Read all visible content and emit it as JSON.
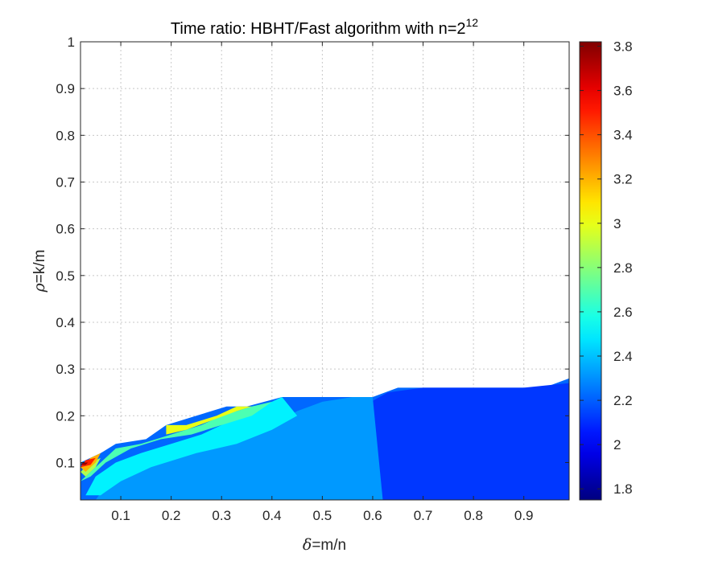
{
  "chart_data": {
    "type": "contour",
    "title": "Time ratio: HBHT/Fast algorithm with n=2",
    "title_exponent": "12",
    "xlabel": {
      "symbol": "δ",
      "text": "=m/n"
    },
    "ylabel": {
      "symbol": "ρ",
      "text": "=k/m"
    },
    "xlim": [
      0.02,
      0.99
    ],
    "ylim": [
      0.02,
      1.0
    ],
    "xticks": [
      0.1,
      0.2,
      0.3,
      0.4,
      0.5,
      0.6,
      0.7,
      0.8,
      0.9
    ],
    "xtick_labels": [
      "0.1",
      "0.2",
      "0.3",
      "0.4",
      "0.5",
      "0.6",
      "0.7",
      "0.8",
      "0.9"
    ],
    "yticks": [
      0.1,
      0.2,
      0.3,
      0.4,
      0.5,
      0.6,
      0.7,
      0.8,
      0.9,
      1.0
    ],
    "ytick_labels": [
      "0.1",
      "0.2",
      "0.3",
      "0.4",
      "0.5",
      "0.6",
      "0.7",
      "0.8",
      "0.9",
      "1"
    ],
    "grid": true,
    "colormap": "jet",
    "clim": [
      1.75,
      3.82
    ],
    "colorbar_ticks": [
      1.8,
      2.0,
      2.2,
      2.4,
      2.6,
      2.8,
      3.0,
      3.2,
      3.4,
      3.6,
      3.8
    ],
    "colorbar_labels": [
      "1.8",
      "2",
      "2.2",
      "2.4",
      "2.6",
      "2.8",
      "3",
      "3.2",
      "3.4",
      "3.6",
      "3.8"
    ],
    "boundary": [
      [
        0.02,
        0.1
      ],
      [
        0.06,
        0.12
      ],
      [
        0.09,
        0.14
      ],
      [
        0.15,
        0.15
      ],
      [
        0.19,
        0.18
      ],
      [
        0.25,
        0.2
      ],
      [
        0.31,
        0.22
      ],
      [
        0.35,
        0.22
      ],
      [
        0.42,
        0.24
      ],
      [
        0.6,
        0.24
      ],
      [
        0.65,
        0.26
      ],
      [
        0.94,
        0.26
      ],
      [
        0.99,
        0.28
      ],
      [
        0.99,
        0.02
      ],
      [
        0.02,
        0.02
      ]
    ],
    "regions": [
      {
        "level": 1.82,
        "polygon": [
          [
            0.32,
            0.02
          ],
          [
            0.38,
            0.04
          ],
          [
            0.45,
            0.06
          ],
          [
            0.5,
            0.08
          ],
          [
            0.55,
            0.09
          ],
          [
            0.6,
            0.1
          ],
          [
            0.65,
            0.12
          ],
          [
            0.68,
            0.16
          ],
          [
            0.71,
            0.18
          ],
          [
            0.75,
            0.19
          ],
          [
            0.8,
            0.19
          ],
          [
            0.85,
            0.21
          ],
          [
            0.9,
            0.2
          ],
          [
            0.95,
            0.2
          ],
          [
            0.99,
            0.22
          ],
          [
            0.99,
            0.02
          ]
        ]
      },
      {
        "level": 1.92,
        "polygon": [
          [
            0.12,
            0.02
          ],
          [
            0.18,
            0.04
          ],
          [
            0.25,
            0.06
          ],
          [
            0.32,
            0.08
          ],
          [
            0.38,
            0.09
          ],
          [
            0.43,
            0.11
          ],
          [
            0.48,
            0.13
          ],
          [
            0.54,
            0.16
          ],
          [
            0.6,
            0.19
          ],
          [
            0.64,
            0.22
          ],
          [
            0.7,
            0.24
          ],
          [
            0.78,
            0.22
          ],
          [
            0.85,
            0.23
          ],
          [
            0.92,
            0.22
          ],
          [
            0.99,
            0.24
          ],
          [
            0.99,
            0.02
          ]
        ]
      },
      {
        "level": 2.12,
        "polygon": [
          [
            0.07,
            0.02
          ],
          [
            0.1,
            0.04
          ],
          [
            0.16,
            0.07
          ],
          [
            0.22,
            0.09
          ],
          [
            0.28,
            0.1
          ],
          [
            0.34,
            0.11
          ],
          [
            0.4,
            0.14
          ],
          [
            0.46,
            0.17
          ],
          [
            0.52,
            0.19
          ],
          [
            0.58,
            0.22
          ],
          [
            0.63,
            0.25
          ],
          [
            0.7,
            0.26
          ],
          [
            0.8,
            0.26
          ],
          [
            0.9,
            0.26
          ],
          [
            0.99,
            0.27
          ],
          [
            0.99,
            0.02
          ]
        ]
      },
      {
        "level": 2.32,
        "polygon": [
          [
            0.05,
            0.02
          ],
          [
            0.07,
            0.05
          ],
          [
            0.12,
            0.08
          ],
          [
            0.18,
            0.11
          ],
          [
            0.25,
            0.13
          ],
          [
            0.3,
            0.14
          ],
          [
            0.35,
            0.16
          ],
          [
            0.4,
            0.18
          ],
          [
            0.45,
            0.21
          ],
          [
            0.5,
            0.23
          ],
          [
            0.56,
            0.24
          ],
          [
            0.6,
            0.24
          ],
          [
            0.62,
            0.02
          ]
        ]
      },
      {
        "level": 2.5,
        "polygon": [
          [
            0.03,
            0.03
          ],
          [
            0.05,
            0.07
          ],
          [
            0.09,
            0.1
          ],
          [
            0.14,
            0.12
          ],
          [
            0.2,
            0.14
          ],
          [
            0.26,
            0.16
          ],
          [
            0.3,
            0.18
          ],
          [
            0.34,
            0.2
          ],
          [
            0.38,
            0.22
          ],
          [
            0.42,
            0.24
          ],
          [
            0.45,
            0.2
          ],
          [
            0.4,
            0.17
          ],
          [
            0.33,
            0.14
          ],
          [
            0.25,
            0.12
          ],
          [
            0.16,
            0.09
          ],
          [
            0.1,
            0.06
          ],
          [
            0.06,
            0.03
          ]
        ]
      },
      {
        "level": 2.68,
        "polygon": [
          [
            0.02,
            0.06
          ],
          [
            0.05,
            0.09
          ],
          [
            0.09,
            0.13
          ],
          [
            0.14,
            0.14
          ],
          [
            0.2,
            0.16
          ],
          [
            0.26,
            0.18
          ],
          [
            0.3,
            0.2
          ],
          [
            0.33,
            0.21
          ],
          [
            0.36,
            0.22
          ],
          [
            0.4,
            0.23
          ],
          [
            0.36,
            0.2
          ],
          [
            0.3,
            0.18
          ],
          [
            0.24,
            0.16
          ],
          [
            0.18,
            0.15
          ],
          [
            0.12,
            0.13
          ],
          [
            0.07,
            0.1
          ],
          [
            0.04,
            0.07
          ]
        ]
      },
      {
        "level": 2.88,
        "polygon": [
          [
            0.02,
            0.08
          ],
          [
            0.04,
            0.1
          ],
          [
            0.06,
            0.11
          ],
          [
            0.05,
            0.09
          ],
          [
            0.03,
            0.07
          ]
        ]
      },
      {
        "level": 3.0,
        "polygon": [
          [
            0.19,
            0.16
          ],
          [
            0.19,
            0.18
          ],
          [
            0.23,
            0.18
          ],
          [
            0.29,
            0.2
          ],
          [
            0.33,
            0.22
          ],
          [
            0.36,
            0.22
          ],
          [
            0.33,
            0.21
          ],
          [
            0.28,
            0.19
          ],
          [
            0.23,
            0.17
          ]
        ]
      },
      {
        "level": 3.2,
        "polygon": [
          [
            0.02,
            0.09
          ],
          [
            0.04,
            0.11
          ],
          [
            0.06,
            0.12
          ],
          [
            0.05,
            0.1
          ],
          [
            0.03,
            0.08
          ]
        ]
      },
      {
        "level": 3.5,
        "polygon": [
          [
            0.02,
            0.09
          ],
          [
            0.03,
            0.105
          ],
          [
            0.05,
            0.11
          ],
          [
            0.04,
            0.095
          ]
        ]
      },
      {
        "level": 3.78,
        "polygon": [
          [
            0.02,
            0.095
          ],
          [
            0.025,
            0.1
          ],
          [
            0.035,
            0.1
          ],
          [
            0.03,
            0.095
          ]
        ]
      }
    ]
  }
}
